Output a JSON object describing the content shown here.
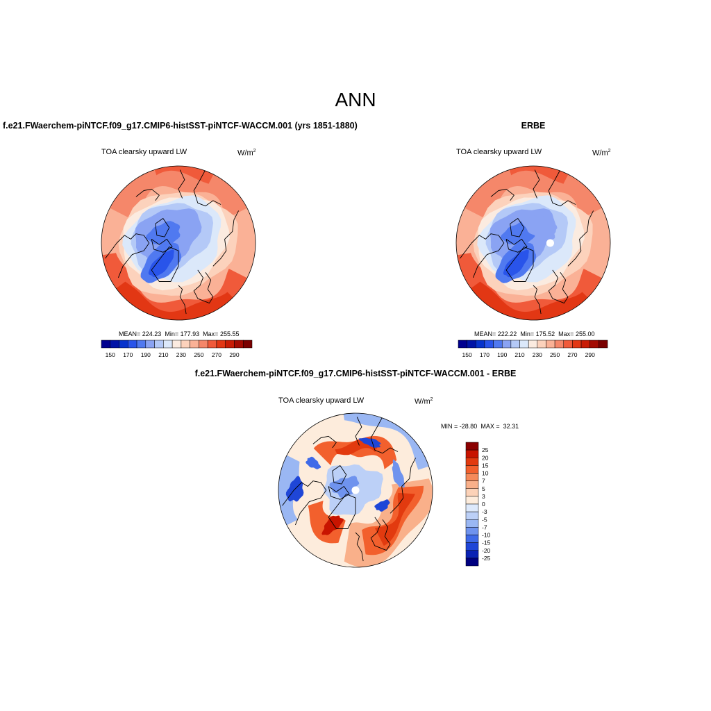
{
  "chart_data": {
    "type": "contour-map",
    "title": "ANN",
    "projection": "north-polar-stereographic",
    "panels": [
      {
        "id": "model",
        "title": "f.e21.FWaerchem-piNTCF.f09_g17.CMIP6-histSST-piNTCF-WACCM.001 (yrs 1851-1880)",
        "variable": "TOA clearsky upward LW",
        "units": "W/m",
        "units_exp": "2",
        "stats": {
          "mean_label": "MEAN=",
          "mean": "224.23",
          "min_label": "Min=",
          "min": "177.93",
          "max_label": "Max=",
          "max": "255.55"
        },
        "colorbar": {
          "orientation": "horizontal",
          "tick_labels": [
            "150",
            "170",
            "190",
            "210",
            "230",
            "250",
            "270",
            "290"
          ],
          "colors": [
            "#00008f",
            "#0013a6",
            "#0733cc",
            "#2954ea",
            "#5079f0",
            "#8aa3f3",
            "#b4c9f7",
            "#dbe8fa",
            "#fbebe0",
            "#fcd2bc",
            "#fab196",
            "#f5876a",
            "#f05a3a",
            "#e23714",
            "#c81c05",
            "#a30b02",
            "#7a0000"
          ]
        }
      },
      {
        "id": "obs",
        "title": "ERBE",
        "variable": "TOA clearsky upward LW",
        "units": "W/m",
        "units_exp": "2",
        "stats": {
          "mean_label": "MEAN=",
          "mean": "222.22",
          "min_label": "Min=",
          "min": "175.52",
          "max_label": "Max=",
          "max": "255.00"
        },
        "colorbar": {
          "orientation": "horizontal",
          "tick_labels": [
            "150",
            "170",
            "190",
            "210",
            "230",
            "250",
            "270",
            "290"
          ],
          "colors": [
            "#00008f",
            "#0013a6",
            "#0733cc",
            "#2954ea",
            "#5079f0",
            "#8aa3f3",
            "#b4c9f7",
            "#dbe8fa",
            "#fbebe0",
            "#fcd2bc",
            "#fab196",
            "#f5876a",
            "#f05a3a",
            "#e23714",
            "#c81c05",
            "#a30b02",
            "#7a0000"
          ]
        }
      },
      {
        "id": "diff",
        "title": "f.e21.FWaerchem-piNTCF.f09_g17.CMIP6-histSST-piNTCF-WACCM.001 - ERBE",
        "variable": "TOA clearsky upward LW",
        "units": "W/m",
        "units_exp": "2",
        "stats": {
          "min_label": "MIN =",
          "min": "-28.80",
          "max_label": "MAX =",
          "max": "32.31"
        },
        "colorbar": {
          "orientation": "vertical",
          "tick_labels": [
            "25",
            "20",
            "15",
            "10",
            "7",
            "5",
            "3",
            "0",
            "-3",
            "-5",
            "-7",
            "-10",
            "-15",
            "-20",
            "-25"
          ],
          "colors": [
            "#8b0000",
            "#c81400",
            "#e23a0f",
            "#f2602d",
            "#f58a5a",
            "#f9b08a",
            "#fcd2b8",
            "#fdecdc",
            "#dde9fb",
            "#bcd0f7",
            "#9ab7f3",
            "#6f93ee",
            "#3f6ae8",
            "#1f46d7",
            "#0a22b4",
            "#000080"
          ]
        }
      }
    ]
  }
}
